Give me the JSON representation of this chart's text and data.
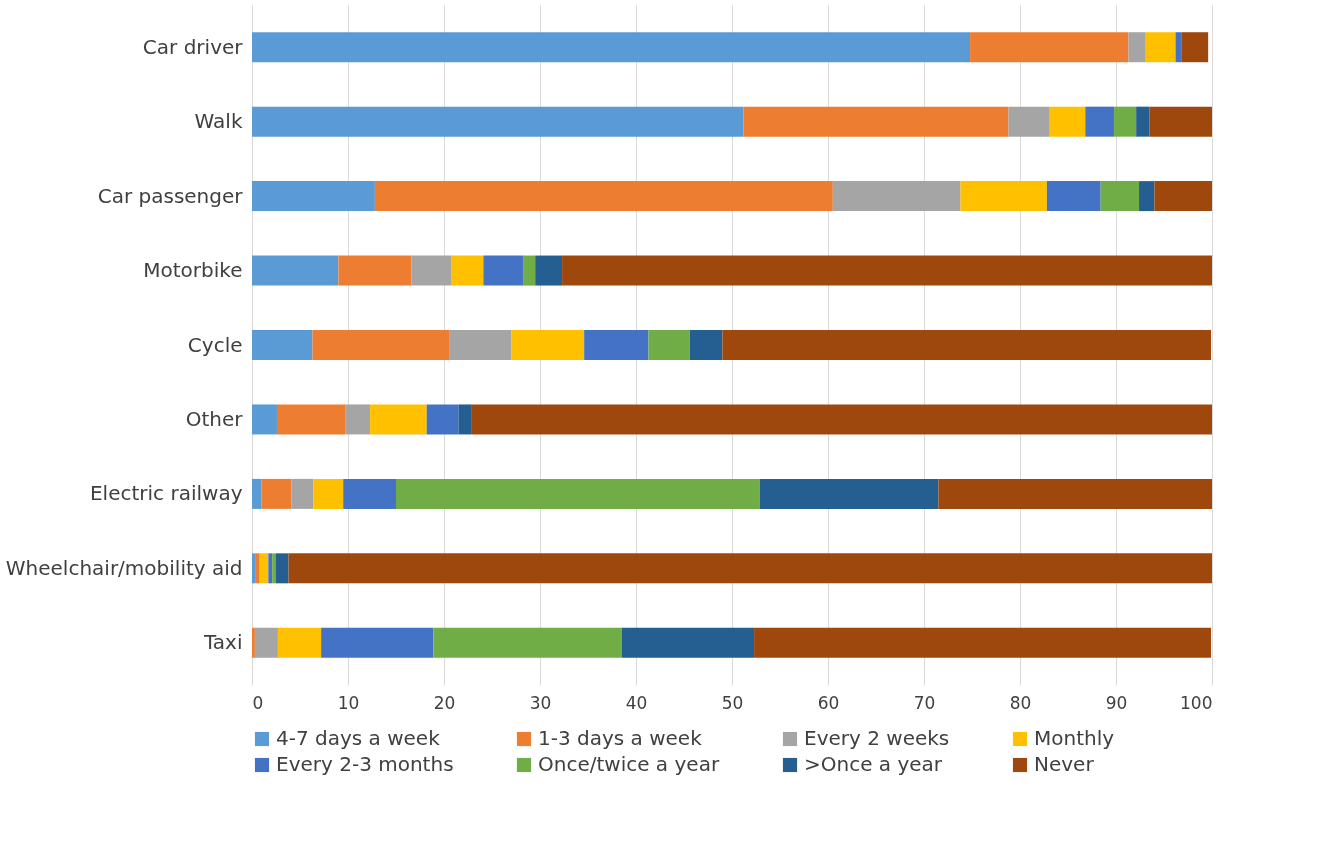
{
  "chart_data": {
    "type": "bar",
    "orientation": "horizontal",
    "stacked": true,
    "categories": [
      "Car driver",
      "Walk",
      "Car passenger",
      "Motorbike",
      "Cycle",
      "Other",
      "Electric railway",
      "Wheelchair/mobility aid",
      "Taxi"
    ],
    "series": [
      {
        "name": "4-7 days a week",
        "color": "#5b9bd5",
        "values": [
          74.8,
          51.2,
          12.8,
          9.0,
          6.3,
          2.6,
          1.0,
          0.4,
          0
        ]
      },
      {
        "name": "1-3 days a week",
        "color": "#ed7d31",
        "values": [
          16.5,
          27.6,
          47.7,
          7.6,
          14.3,
          7.1,
          3.1,
          0.4,
          0.3
        ]
      },
      {
        "name": "Every 2 weeks",
        "color": "#a5a5a5",
        "values": [
          1.8,
          4.3,
          13.3,
          4.2,
          6.4,
          2.6,
          2.3,
          0,
          2.4
        ]
      },
      {
        "name": "Monthly",
        "color": "#ffc000",
        "values": [
          3.1,
          3.7,
          9.0,
          3.3,
          7.6,
          5.9,
          3.1,
          0.9,
          4.5
        ]
      },
      {
        "name": "Every 2-3 months",
        "color": "#4472c4",
        "values": [
          0.6,
          3.0,
          5.6,
          4.2,
          6.7,
          3.3,
          5.5,
          0.4,
          11.7
        ]
      },
      {
        "name": "Once/twice a year",
        "color": "#70ad47",
        "values": [
          0,
          2.3,
          4.0,
          1.2,
          4.3,
          0,
          37.9,
          0.4,
          19.6
        ]
      },
      {
        "name": ">Once a year",
        "color": "#255e91",
        "values": [
          0,
          1.4,
          1.6,
          2.8,
          3.4,
          1.4,
          18.6,
          1.3,
          13.8
        ]
      },
      {
        "name": "Never",
        "color": "#9e480e",
        "values": [
          2.8,
          6.5,
          6.0,
          67.7,
          50.9,
          77.1,
          28.5,
          96.2,
          47.6
        ]
      }
    ],
    "xlim": [
      0,
      100
    ],
    "xticks": [
      0,
      10,
      20,
      30,
      40,
      50,
      60,
      70,
      80,
      90,
      100
    ],
    "grid": "x",
    "legend": "bottom"
  }
}
